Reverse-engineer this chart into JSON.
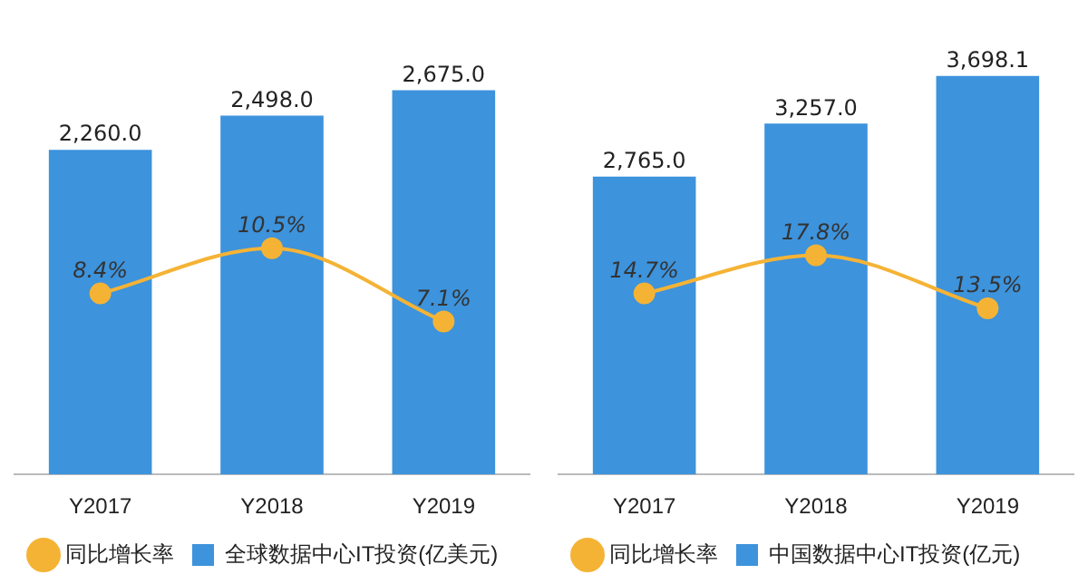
{
  "chart_data": [
    {
      "type": "bar",
      "categories": [
        "Y2017",
        "Y2018",
        "Y2019"
      ],
      "tick_labels": "x",
      "legend": "bottom",
      "marker": "circle",
      "series": [
        {
          "name": "全球数据中心IT投资(亿美元)",
          "type": "bar",
          "color": "#3d93dc",
          "values": [
            2260.0,
            2498.0,
            2675.0
          ],
          "value_labels": [
            "2,260.0",
            "2,498.0",
            "2,675.0"
          ]
        },
        {
          "name": "同比增长率",
          "type": "line",
          "axis": "y2",
          "color": "#f5b335",
          "values": [
            8.4,
            10.5,
            7.1
          ],
          "value_labels": [
            "8.4%",
            "10.5%",
            "7.1%"
          ]
        }
      ]
    },
    {
      "type": "bar",
      "categories": [
        "Y2017",
        "Y2018",
        "Y2019"
      ],
      "tick_labels": "x",
      "legend": "bottom",
      "marker": "circle",
      "series": [
        {
          "name": "中国数据中心IT投资(亿元)",
          "type": "bar",
          "color": "#3d93dc",
          "values": [
            2765.0,
            3257.0,
            3698.1
          ],
          "value_labels": [
            "2,765.0",
            "3,257.0",
            "3,698.1"
          ]
        },
        {
          "name": "同比增长率",
          "type": "line",
          "axis": "y2",
          "color": "#f5b335",
          "values": [
            14.7,
            17.8,
            13.5
          ],
          "value_labels": [
            "14.7%",
            "17.8%",
            "13.5%"
          ]
        }
      ]
    }
  ]
}
